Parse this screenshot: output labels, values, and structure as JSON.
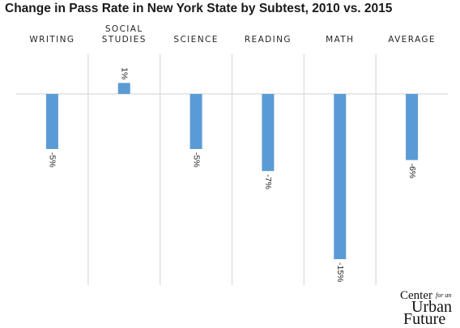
{
  "chart_data": {
    "type": "bar",
    "title": "Change in Pass Rate in New York State by Subtest, 2010 vs. 2015",
    "categories": [
      "WRITING",
      "SOCIAL STUDIES",
      "SCIENCE",
      "READING",
      "MATH",
      "AVERAGE"
    ],
    "category_lines": [
      [
        "WRITING"
      ],
      [
        "SOCIAL",
        "STUDIES"
      ],
      [
        "SCIENCE"
      ],
      [
        "READING"
      ],
      [
        "MATH"
      ],
      [
        "AVERAGE"
      ]
    ],
    "values": [
      -5,
      1,
      -5,
      -7,
      -15,
      -6
    ],
    "value_labels": [
      "-5%",
      "1%",
      "-5%",
      "-7%",
      "-15%",
      "-6%"
    ],
    "ylim": [
      -16.3,
      1.7
    ],
    "xlabel": "",
    "ylabel": "",
    "grid": "vertical separators",
    "legend": "none",
    "bar_color": "#5b9bd5",
    "gridline_color": "#d9d9d9"
  },
  "logo": {
    "line1": "Center",
    "line1_small": "for an",
    "line2": "Urban",
    "line3": "Future"
  }
}
